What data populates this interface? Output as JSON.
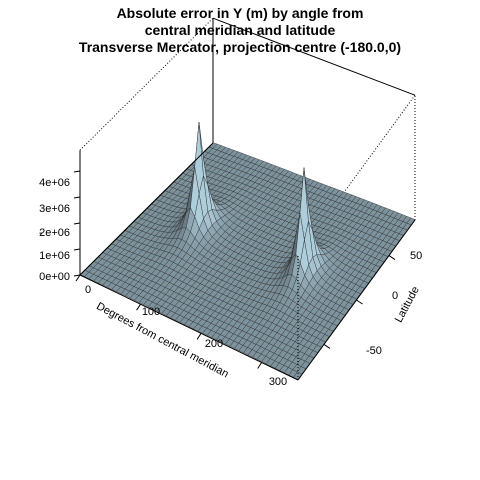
{
  "chart_data": {
    "type": "surface",
    "title_lines": [
      "Absolute error in Y (m) by angle from",
      "central meridian and latitude",
      "Transverse Mercator, projection centre (-180.0,0)"
    ],
    "xlabel": "Degrees from central meridian",
    "ylabel": "Latitude",
    "zlabel": "",
    "z_tick_marker": "-",
    "xlim": [
      0,
      360
    ],
    "ylim": [
      -90,
      90
    ],
    "zlim": [
      0,
      4800000.0
    ],
    "x_ticks": [
      {
        "value": 0,
        "label": "0"
      },
      {
        "value": 100,
        "label": "100"
      },
      {
        "value": 200,
        "label": "200"
      },
      {
        "value": 300,
        "label": "300"
      }
    ],
    "y_ticks": [
      {
        "value": -50,
        "label": "-50"
      },
      {
        "value": 0,
        "label": "0"
      },
      {
        "value": 50,
        "label": "50"
      }
    ],
    "z_ticks": [
      {
        "value": 0,
        "label": "0e+00"
      },
      {
        "value": 1000000.0,
        "label": "1e+06"
      },
      {
        "value": 2000000.0,
        "label": "2e+06"
      },
      {
        "value": 3000000.0,
        "label": "3e+06"
      },
      {
        "value": 4000000.0,
        "label": "4e+06"
      }
    ],
    "peaks": [
      {
        "x_deg": 90,
        "lat": 0,
        "max_error_m": 4200000.0
      },
      {
        "x_deg": 270,
        "lat": 0,
        "max_error_m": 4200000.0
      }
    ],
    "surface_color": "#a6c3d0",
    "edge_color": "#2a2a2a",
    "background": "#ffffff"
  }
}
